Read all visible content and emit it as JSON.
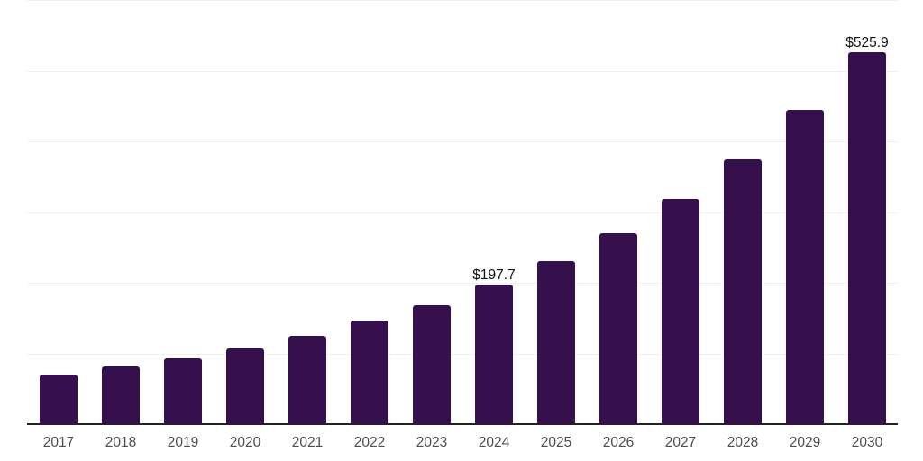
{
  "chart_data": {
    "type": "bar",
    "title": "",
    "xlabel": "",
    "ylabel": "",
    "categories": [
      "2017",
      "2018",
      "2019",
      "2020",
      "2021",
      "2022",
      "2023",
      "2024",
      "2025",
      "2026",
      "2027",
      "2028",
      "2029",
      "2030"
    ],
    "values": [
      70,
      82,
      93,
      107,
      125,
      146,
      168,
      197.7,
      231,
      270,
      318,
      375,
      444,
      525.9
    ],
    "data_labels": [
      "",
      "",
      "",
      "",
      "",
      "",
      "",
      "$197.7",
      "",
      "",
      "",
      "",
      "",
      "$525.9"
    ],
    "ylim": [
      0,
      600
    ],
    "gridline_step": 100,
    "grid": "horizontal",
    "legend": "none",
    "colors": {
      "bar": "#36104d",
      "gridline": "#f0f0f0",
      "axis_line": "#222222",
      "tick_label": "#4d4d4d",
      "data_label": "#111111",
      "background": "#ffffff"
    }
  }
}
